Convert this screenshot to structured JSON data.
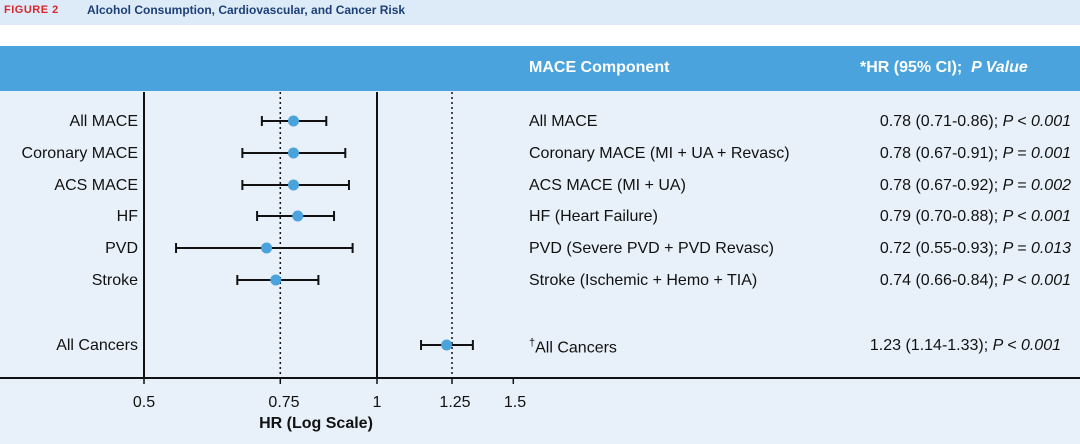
{
  "header": {
    "figure_label": "FIGURE 2",
    "title": "Alcohol Consumption, Cardiovascular, and Cancer Risk"
  },
  "table_header": {
    "component": "MACE Component",
    "hr_prefix": "*HR (95% CI);",
    "p_label": "P Value"
  },
  "rows": [
    {
      "label": "All MACE",
      "component": "All MACE",
      "stat": "0.78 (0.71-0.86);",
      "p": "P < 0.001"
    },
    {
      "label": "Coronary MACE",
      "component": "Coronary MACE (MI + UA + Revasc)",
      "stat": "0.78 (0.67-0.91);",
      "p": "P = 0.001"
    },
    {
      "label": "ACS MACE",
      "component": "ACS MACE (MI + UA)",
      "stat": "0.78 (0.67-0.92);",
      "p": "P = 0.002"
    },
    {
      "label": "HF",
      "component": "HF (Heart Failure)",
      "stat": "0.79 (0.70-0.88);",
      "p": "P < 0.001"
    },
    {
      "label": "PVD",
      "component": "PVD (Severe PVD + PVD Revasc)",
      "stat": "0.72 (0.55-0.93);",
      "p": "P = 0.013"
    },
    {
      "label": "Stroke",
      "component": "Stroke (Ischemic + Hemo + TIA)",
      "stat": "0.74 (0.66-0.84);",
      "p": "P < 0.001"
    },
    {
      "label": "All Cancers",
      "component_mark": "†",
      "component": "All Cancers",
      "stat": "1.23 (1.14-1.33);",
      "p": "P < 0.001"
    }
  ],
  "colors": {
    "point": "#4aa3dc",
    "bar": "#4aa3dc",
    "panel": "#e8f1f9",
    "header_band": "#dcebf7",
    "label_red": "#d9262d",
    "title_navy": "#1d3f77"
  },
  "chart_data": {
    "type": "scatter",
    "subtype": "forest-plot",
    "xlabel": "HR (Log Scale)",
    "x_scale": "log",
    "xlim": [
      0.5,
      1.5
    ],
    "x_ticks": [
      0.5,
      0.75,
      1,
      1.25,
      1.5
    ],
    "x_tick_labels": [
      "0.5",
      "0.75",
      "1",
      "1.25",
      "1.5"
    ],
    "reference_line": 1,
    "dotted_lines": [
      0.75,
      1.25
    ],
    "categories": [
      "All MACE",
      "Coronary MACE",
      "ACS MACE",
      "HF",
      "PVD",
      "Stroke",
      "All Cancers"
    ],
    "hr": [
      0.78,
      0.78,
      0.78,
      0.79,
      0.72,
      0.74,
      1.23
    ],
    "ci_low": [
      0.71,
      0.67,
      0.67,
      0.7,
      0.55,
      0.66,
      1.14
    ],
    "ci_high": [
      0.86,
      0.91,
      0.92,
      0.88,
      0.93,
      0.84,
      1.33
    ]
  }
}
